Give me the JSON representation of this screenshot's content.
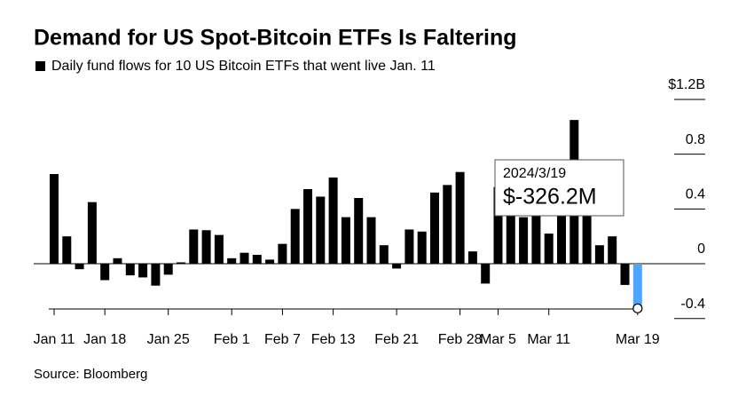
{
  "chart_data": {
    "type": "bar",
    "title": "Demand for US Spot-Bitcoin ETFs Is Faltering",
    "source": "Source: Bloomberg",
    "categories": [
      "Jan 11",
      null,
      null,
      null,
      "Jan 18",
      null,
      null,
      null,
      null,
      "Jan 25",
      null,
      null,
      null,
      null,
      "Feb 1",
      null,
      null,
      null,
      "Feb 7",
      null,
      null,
      null,
      "Feb 13",
      null,
      null,
      null,
      null,
      "Feb 21",
      null,
      null,
      null,
      null,
      "Feb 28",
      null,
      null,
      "Mar 5",
      null,
      null,
      null,
      "Mar 11",
      null,
      null,
      null,
      null,
      null,
      null,
      "Mar 19"
    ],
    "series": [
      {
        "name": "Daily fund flows for 10 US Bitcoin ETFs that went live Jan. 11",
        "color": "#000000",
        "values": [
          0.655,
          0.2,
          -0.04,
          0.45,
          -0.12,
          0.04,
          -0.085,
          -0.1,
          -0.16,
          -0.08,
          0.01,
          0.25,
          0.245,
          0.21,
          0.04,
          0.08,
          0.065,
          0.03,
          0.145,
          0.4,
          0.545,
          0.49,
          0.63,
          0.34,
          0.48,
          0.34,
          0.135,
          -0.035,
          0.25,
          0.235,
          0.52,
          0.575,
          0.67,
          0.09,
          -0.145,
          0.56,
          0.68,
          0.34,
          0.44,
          0.22,
          0.5,
          1.05,
          0.45,
          0.135,
          0.2,
          -0.155,
          -0.3262
        ]
      }
    ],
    "ylim": [
      -0.4,
      1.2
    ],
    "yticks": [
      -0.4,
      0,
      0.4,
      0.8,
      {
        "value": 1.2,
        "label": "$1.2B"
      }
    ],
    "tooltip": {
      "title": "2024/3/19",
      "label": "$-326.2M",
      "color": "#4da6ff"
    }
  }
}
